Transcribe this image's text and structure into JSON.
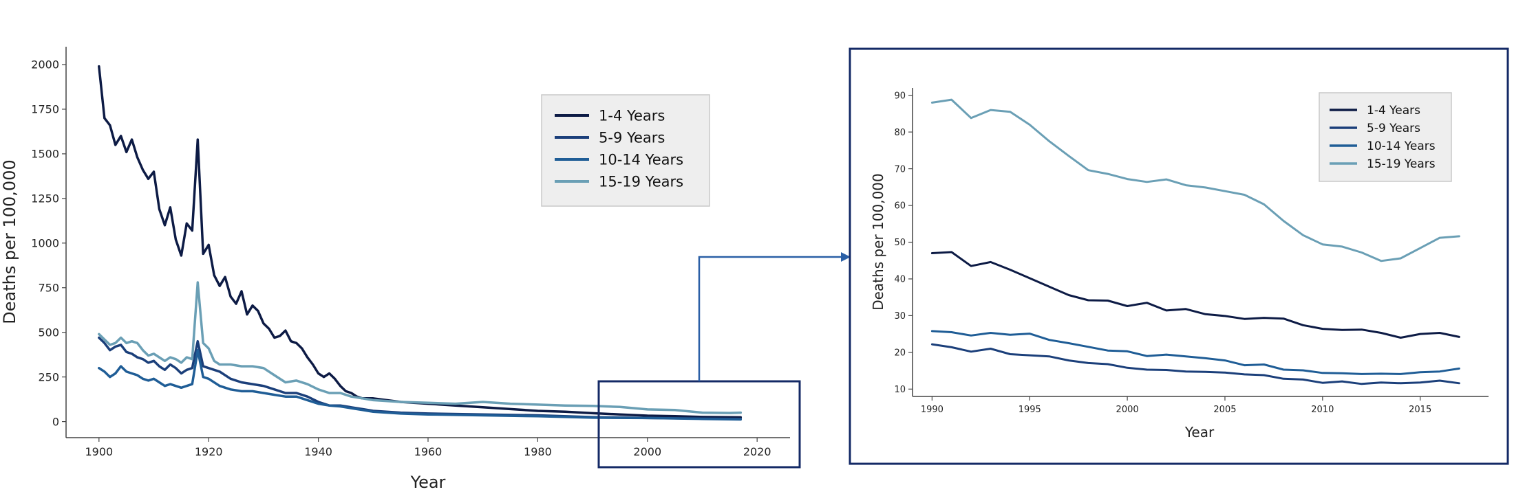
{
  "chart_data": [
    {
      "type": "line",
      "xlabel": "Year",
      "ylabel": "Deaths per 100,000",
      "xlim": [
        1894,
        2026
      ],
      "ylim": [
        -90,
        2100
      ],
      "xticks": [
        1900,
        1920,
        1940,
        1960,
        1980,
        2000,
        2020
      ],
      "yticks": [
        0,
        250,
        500,
        750,
        1000,
        1250,
        1500,
        1750,
        2000
      ],
      "legend_position": "upper-right",
      "grid": false,
      "series": [
        {
          "name": "1-4 Years",
          "color": "#0d1b45",
          "x": [
            1900,
            1901,
            1902,
            1903,
            1904,
            1905,
            1906,
            1907,
            1908,
            1909,
            1910,
            1911,
            1912,
            1913,
            1914,
            1915,
            1916,
            1917,
            1918,
            1919,
            1920,
            1921,
            1922,
            1923,
            1924,
            1925,
            1926,
            1927,
            1928,
            1929,
            1930,
            1931,
            1932,
            1933,
            1934,
            1935,
            1936,
            1937,
            1938,
            1939,
            1940,
            1941,
            1942,
            1943,
            1944,
            1945,
            1946,
            1947,
            1948,
            1949,
            1950,
            1955,
            1960,
            1965,
            1970,
            1975,
            1980,
            1985,
            1990,
            1995,
            2000,
            2005,
            2010,
            2017
          ],
          "values": [
            1990,
            1700,
            1660,
            1550,
            1600,
            1510,
            1580,
            1480,
            1410,
            1360,
            1400,
            1190,
            1100,
            1200,
            1020,
            930,
            1110,
            1070,
            1580,
            940,
            990,
            820,
            760,
            810,
            700,
            660,
            730,
            600,
            650,
            620,
            550,
            520,
            470,
            480,
            510,
            450,
            440,
            410,
            360,
            320,
            270,
            250,
            270,
            240,
            200,
            170,
            160,
            140,
            130,
            130,
            130,
            110,
            100,
            90,
            80,
            70,
            60,
            55,
            47,
            40,
            33,
            30,
            26,
            24
          ]
        },
        {
          "name": "5-9 Years",
          "color": "#1b3f7a",
          "x": [
            1900,
            1901,
            1902,
            1903,
            1904,
            1905,
            1906,
            1907,
            1908,
            1909,
            1910,
            1911,
            1912,
            1913,
            1914,
            1915,
            1916,
            1917,
            1918,
            1919,
            1920,
            1922,
            1924,
            1926,
            1928,
            1930,
            1932,
            1934,
            1936,
            1938,
            1940,
            1942,
            1944,
            1946,
            1948,
            1950,
            1955,
            1960,
            1970,
            1980,
            1990,
            2000,
            2010,
            2017
          ],
          "values": [
            470,
            440,
            400,
            420,
            430,
            390,
            380,
            360,
            350,
            330,
            340,
            310,
            290,
            320,
            300,
            270,
            290,
            300,
            450,
            310,
            300,
            280,
            240,
            220,
            210,
            200,
            180,
            160,
            160,
            140,
            110,
            90,
            90,
            80,
            70,
            60,
            50,
            45,
            40,
            35,
            25,
            20,
            17,
            15
          ]
        },
        {
          "name": "10-14 Years",
          "color": "#1f5d96",
          "x": [
            1900,
            1901,
            1902,
            1903,
            1904,
            1905,
            1906,
            1907,
            1908,
            1909,
            1910,
            1911,
            1912,
            1913,
            1914,
            1915,
            1916,
            1917,
            1918,
            1919,
            1920,
            1922,
            1924,
            1926,
            1928,
            1930,
            1932,
            1934,
            1936,
            1938,
            1940,
            1942,
            1944,
            1946,
            1948,
            1950,
            1955,
            1960,
            1970,
            1980,
            1990,
            2000,
            2010,
            2017
          ],
          "values": [
            300,
            280,
            250,
            270,
            310,
            280,
            270,
            260,
            240,
            230,
            240,
            220,
            200,
            210,
            200,
            190,
            200,
            210,
            400,
            250,
            240,
            200,
            180,
            170,
            170,
            160,
            150,
            140,
            140,
            120,
            100,
            90,
            85,
            75,
            65,
            55,
            45,
            40,
            35,
            30,
            22,
            20,
            15,
            12
          ]
        },
        {
          "name": "15-19 Years",
          "color": "#6a9fb5",
          "x": [
            1900,
            1901,
            1902,
            1903,
            1904,
            1905,
            1906,
            1907,
            1908,
            1909,
            1910,
            1911,
            1912,
            1913,
            1914,
            1915,
            1916,
            1917,
            1918,
            1919,
            1920,
            1921,
            1922,
            1924,
            1926,
            1928,
            1930,
            1932,
            1934,
            1936,
            1938,
            1940,
            1942,
            1944,
            1946,
            1948,
            1950,
            1955,
            1960,
            1965,
            1970,
            1975,
            1980,
            1985,
            1990,
            1995,
            2000,
            2005,
            2010,
            2015,
            2017
          ],
          "values": [
            490,
            460,
            430,
            440,
            470,
            440,
            450,
            440,
            400,
            370,
            380,
            360,
            340,
            360,
            350,
            330,
            360,
            350,
            780,
            440,
            410,
            340,
            320,
            320,
            310,
            310,
            300,
            260,
            220,
            230,
            210,
            180,
            160,
            160,
            140,
            130,
            120,
            110,
            105,
            100,
            110,
            100,
            95,
            90,
            88,
            82,
            68,
            65,
            50,
            48,
            50
          ]
        }
      ]
    },
    {
      "type": "line",
      "xlabel": "Year",
      "ylabel": "Deaths per 100,000",
      "xlim": [
        1989,
        2018.5
      ],
      "ylim": [
        8,
        92
      ],
      "xticks": [
        1990,
        1995,
        2000,
        2005,
        2010,
        2015
      ],
      "yticks": [
        10,
        20,
        30,
        40,
        50,
        60,
        70,
        80,
        90
      ],
      "legend_position": "upper-right",
      "grid": false,
      "series": [
        {
          "name": "1-4 Years",
          "color": "#0d1b45",
          "x": [
            1990,
            1991,
            1992,
            1993,
            1994,
            1995,
            1996,
            1997,
            1998,
            1999,
            2000,
            2001,
            2002,
            2003,
            2004,
            2005,
            2006,
            2007,
            2008,
            2009,
            2010,
            2011,
            2012,
            2013,
            2014,
            2015,
            2016,
            2017
          ],
          "values": [
            47,
            47.3,
            43.5,
            44.6,
            42.5,
            40.2,
            37.9,
            35.6,
            34.2,
            34.1,
            32.6,
            33.5,
            31.4,
            31.8,
            30.4,
            29.9,
            29.1,
            29.4,
            29.2,
            27.4,
            26.4,
            26.1,
            26.2,
            25.3,
            24,
            25,
            25.3,
            24.2
          ]
        },
        {
          "name": "5-9 Years",
          "color": "#1b3f7a",
          "x": [
            1990,
            1991,
            1992,
            1993,
            1994,
            1995,
            1996,
            1997,
            1998,
            1999,
            2000,
            2001,
            2002,
            2003,
            2004,
            2005,
            2006,
            2007,
            2008,
            2009,
            2010,
            2011,
            2012,
            2013,
            2014,
            2015,
            2016,
            2017
          ],
          "values": [
            22.2,
            21.4,
            20.2,
            21,
            19.5,
            19.2,
            18.9,
            17.8,
            17.1,
            16.8,
            15.8,
            15.3,
            15.2,
            14.8,
            14.7,
            14.5,
            14,
            13.8,
            12.8,
            12.6,
            11.7,
            12.1,
            11.4,
            11.8,
            11.6,
            11.8,
            12.3,
            11.6
          ]
        },
        {
          "name": "10-14 Years",
          "color": "#1f5d96",
          "x": [
            1990,
            1991,
            1992,
            1993,
            1994,
            1995,
            1996,
            1997,
            1998,
            1999,
            2000,
            2001,
            2002,
            2003,
            2004,
            2005,
            2006,
            2007,
            2008,
            2009,
            2010,
            2011,
            2012,
            2013,
            2014,
            2015,
            2016,
            2017
          ],
          "values": [
            25.8,
            25.5,
            24.6,
            25.3,
            24.8,
            25.1,
            23.4,
            22.5,
            21.5,
            20.5,
            20.3,
            19,
            19.4,
            18.9,
            18.4,
            17.8,
            16.5,
            16.7,
            15.3,
            15.1,
            14.4,
            14.3,
            14.1,
            14.2,
            14.1,
            14.6,
            14.8,
            15.6
          ]
        },
        {
          "name": "15-19 Years",
          "color": "#6a9fb5",
          "x": [
            1990,
            1991,
            1992,
            1993,
            1994,
            1995,
            1996,
            1997,
            1998,
            1999,
            2000,
            2001,
            2002,
            2003,
            2004,
            2005,
            2006,
            2007,
            2008,
            2009,
            2010,
            2011,
            2012,
            2013,
            2014,
            2015,
            2016,
            2017
          ],
          "values": [
            88,
            88.8,
            83.8,
            86,
            85.5,
            82,
            77.5,
            73.5,
            69.6,
            68.6,
            67.2,
            66.4,
            67.1,
            65.5,
            64.9,
            63.9,
            62.9,
            60.3,
            55.8,
            51.9,
            49.4,
            48.8,
            47.2,
            44.9,
            45.6,
            48.4,
            51.2,
            51.6
          ]
        }
      ]
    }
  ]
}
